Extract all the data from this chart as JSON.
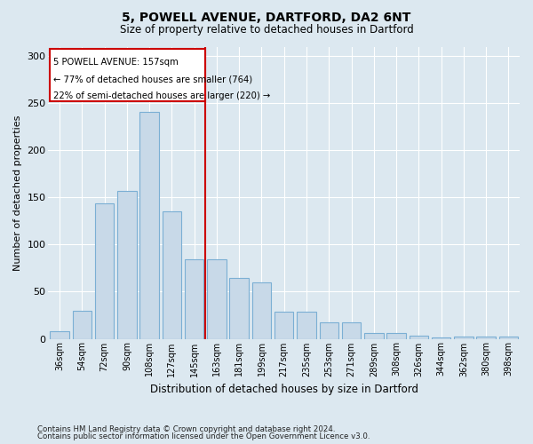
{
  "title1": "5, POWELL AVENUE, DARTFORD, DA2 6NT",
  "title2": "Size of property relative to detached houses in Dartford",
  "xlabel": "Distribution of detached houses by size in Dartford",
  "ylabel": "Number of detached properties",
  "categories": [
    "36sqm",
    "54sqm",
    "72sqm",
    "90sqm",
    "108sqm",
    "127sqm",
    "145sqm",
    "163sqm",
    "181sqm",
    "199sqm",
    "217sqm",
    "235sqm",
    "253sqm",
    "271sqm",
    "289sqm",
    "308sqm",
    "326sqm",
    "344sqm",
    "362sqm",
    "380sqm",
    "398sqm"
  ],
  "values": [
    8,
    30,
    144,
    157,
    241,
    135,
    84,
    84,
    65,
    60,
    29,
    29,
    17,
    17,
    6,
    6,
    3,
    1,
    2,
    2,
    2
  ],
  "bar_color": "#c8d9e8",
  "bar_edge_color": "#7bafd4",
  "vline_color": "#cc0000",
  "annotation_lines": [
    "5 POWELL AVENUE: 157sqm",
    "← 77% of detached houses are smaller (764)",
    "22% of semi-detached houses are larger (220) →"
  ],
  "box_color": "#cc0000",
  "footnote1": "Contains HM Land Registry data © Crown copyright and database right 2024.",
  "footnote2": "Contains public sector information licensed under the Open Government Licence v3.0.",
  "bg_color": "#dce8f0",
  "ylim": [
    0,
    310
  ],
  "yticks": [
    0,
    50,
    100,
    150,
    200,
    250,
    300
  ]
}
